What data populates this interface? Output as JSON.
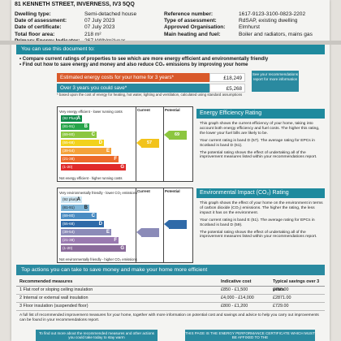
{
  "address": "81 KENNETH STREET, INVERNESS, IV3 5QQ",
  "details_left": [
    {
      "k": "Dwelling type:",
      "v": "Semi-detached house"
    },
    {
      "k": "Date of assessment:",
      "v": "07 July 2023"
    },
    {
      "k": "Date of certificate:",
      "v": "07 July 2023"
    },
    {
      "k": "Total floor area:",
      "v": "218 m²"
    },
    {
      "k": "Primary Energy Indicator:",
      "v": "267 kWh/m²/year"
    }
  ],
  "details_right": [
    {
      "k": "Reference number:",
      "v": "1617-9123-3100-0823-2202"
    },
    {
      "k": "Type of assessment:",
      "v": "RdSAP, existing dwelling"
    },
    {
      "k": "Approved Organisation:",
      "v": "Elmhurst"
    },
    {
      "k": "Main heating and fuel:",
      "v": "Boiler and radiators, mains gas"
    }
  ],
  "use_heading": "You can use this document to:",
  "bullets": [
    "Compare current ratings of properties to see which are more energy efficient and environmentally friendly",
    "Find out how to save energy and money and also reduce CO₂ emissions by improving your home"
  ],
  "costs": {
    "estimated_label": "Estimated energy costs for your home for 3 years*",
    "estimated_value": "£18,249",
    "save_label": "Over 3 years you could save*",
    "save_value": "£5,268",
    "see_your": "See your recommendations report for more information",
    "note": "* based upon the cost of energy for heating, hot water, lighting and ventilation, calculated using standard assumptions"
  },
  "efficiency_chart": {
    "top_label": "Very energy efficient - lower running costs",
    "bottom_label": "Not energy efficient - higher running costs",
    "col_current": "Current",
    "col_potential": "Potential",
    "bands": [
      {
        "range": "(92 Plus)",
        "grade": "A",
        "color": "#0f8a4a"
      },
      {
        "range": "(81-91)",
        "grade": "B",
        "color": "#27a54a"
      },
      {
        "range": "(69-80)",
        "grade": "C",
        "color": "#8cc63f"
      },
      {
        "range": "(55-68)",
        "grade": "D",
        "color": "#f2d21c"
      },
      {
        "range": "(39-54)",
        "grade": "E",
        "color": "#f4a23a"
      },
      {
        "range": "(21-38)",
        "grade": "F",
        "color": "#ec6a2a"
      },
      {
        "range": "(1-20)",
        "grade": "G",
        "color": "#e02a2a"
      }
    ],
    "current": {
      "value": "57",
      "band_index": 3,
      "color": "#f2c31c"
    },
    "potential": {
      "value": "69",
      "band_index": 2,
      "color": "#8cc63f"
    }
  },
  "impact_chart": {
    "top_label": "Very environmentally friendly - lower CO₂ emissions",
    "bottom_label": "Not environmentally friendly - higher CO₂ emissions",
    "col_current": "Current",
    "col_potential": "Potential",
    "bands": [
      {
        "range": "(92 plus)",
        "grade": "A",
        "color": "#cfe6f2"
      },
      {
        "range": "(81-91)",
        "grade": "B",
        "color": "#7fb6d8"
      },
      {
        "range": "(69-80)",
        "grade": "C",
        "color": "#4a8cc2"
      },
      {
        "range": "(55-68)",
        "grade": "D",
        "color": "#2f6aa8"
      },
      {
        "range": "(39-54)",
        "grade": "E",
        "color": "#8b8bb8"
      },
      {
        "range": "(21-38)",
        "grade": "F",
        "color": "#9a7ab0"
      },
      {
        "range": "(1-20)",
        "grade": "G",
        "color": "#8a6a9a"
      }
    ],
    "current": {
      "value": "",
      "band_index": 4,
      "color": "#8b8bb8"
    },
    "potential": {
      "value": "",
      "band_index": 3,
      "color": "#2f6aa8"
    }
  },
  "eer_panel": {
    "title": "Energy Efficiency Rating",
    "p1": "This graph shows the current efficiency of your home, taking into account both energy efficiency and fuel costs. The higher this rating, the lower your fuel bills are likely to be.",
    "p2": "Your current rating is band D (57). The average rating for EPCs in Scotland is band D (61).",
    "p3": "The potential rating shows the effect of undertaking all of the improvement measures listed within your recommendations report."
  },
  "eir_panel": {
    "title": "Environmental Impact (CO₂) Rating",
    "p1": "This graph shows the effect of your home on the environment in terms of carbon dioxide (CO₂) emissions. The higher the rating, the less impact it has on the environment.",
    "p2": "Your current rating is band E (51). The average rating for EPCs in Scotland is band D (59).",
    "p3": "The potential rating shows the effect of undertaking all of the improvement measures listed within your recommendations report."
  },
  "top_actions": {
    "title": "Top actions you can take to save money and make your home more efficient",
    "headers": [
      "Recommended measures",
      "Indicative cost",
      "Typical savings over 3 years"
    ],
    "rows": [
      [
        "1 Flat roof or sloping ceiling insulation",
        "£850 - £1,500",
        "£750.00"
      ],
      [
        "2 Internal or external wall insulation",
        "£4,000 - £14,000",
        "£2871.00"
      ],
      [
        "3 Floor insulation (suspended floor)",
        "£800 - £1,200",
        "£729.00"
      ]
    ],
    "footnote": "A full list of recommended improvement measures for your home, together with more information on potential cost and savings and advice to help you carry out improvements can be found in your recommendations report.",
    "bottom_left": "To find out more about the recommended measures and other actions you could take today to stay warm",
    "bottom_right": "THIS PAGE IS THE ENERGY PERFORMANCE CERTIFICATE WHICH MUST BE AFFIXED TO THE"
  }
}
